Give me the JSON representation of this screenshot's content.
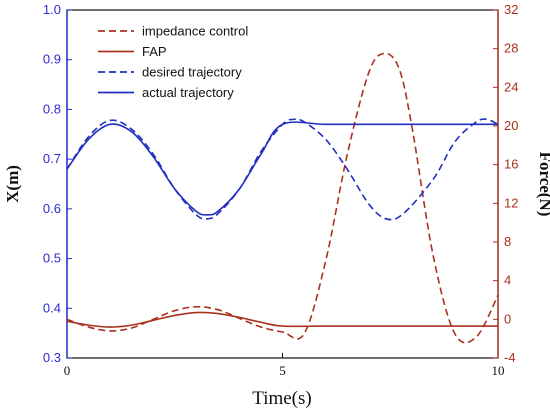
{
  "chart_data": {
    "type": "line",
    "xlabel": "Time(s)",
    "ylabel_left": "X(m)",
    "ylabel_right": "Force(N)",
    "xlim": [
      0,
      10
    ],
    "ylim_left": [
      0.3,
      1.0
    ],
    "ylim_right": [
      -4,
      32
    ],
    "x_ticks": [
      0,
      5,
      10
    ],
    "y_left_ticks": [
      0.3,
      0.4,
      0.5,
      0.6,
      0.7,
      0.8,
      0.9,
      1.0
    ],
    "y_right_ticks": [
      -4,
      0,
      4,
      8,
      12,
      16,
      20,
      24,
      28,
      32
    ],
    "legend_position": "top-left",
    "colors": {
      "left_axis": "#2b2bd6",
      "right_axis": "#a8321e",
      "force": "#a8321e",
      "position": "#1f2fc0"
    },
    "series": [
      {
        "name": "impedance control",
        "axis": "right",
        "style": "dashed",
        "x": [
          0,
          0.5,
          1.0,
          1.5,
          2.0,
          2.5,
          3.0,
          3.5,
          4.0,
          4.5,
          5.0,
          5.5,
          6.0,
          6.5,
          7.0,
          7.35,
          7.7,
          8.0,
          8.5,
          9.0,
          9.5,
          10.0
        ],
        "y": [
          0.0,
          -0.8,
          -1.2,
          -0.9,
          0.0,
          0.9,
          1.3,
          1.0,
          0.1,
          -0.8,
          -1.3,
          -1.5,
          6.0,
          17.0,
          25.5,
          27.5,
          26.0,
          20.0,
          6.5,
          -1.5,
          -1.8,
          2.5
        ]
      },
      {
        "name": "FAP",
        "axis": "right",
        "style": "solid",
        "x": [
          0,
          0.5,
          1.0,
          1.5,
          2.0,
          2.5,
          3.0,
          3.5,
          4.0,
          4.5,
          5.0,
          6.0,
          7.0,
          8.0,
          9.0,
          10.0
        ],
        "y": [
          -0.2,
          -0.6,
          -0.8,
          -0.6,
          -0.1,
          0.4,
          0.7,
          0.6,
          0.2,
          -0.3,
          -0.7,
          -0.7,
          -0.7,
          -0.7,
          -0.7,
          -0.7
        ]
      },
      {
        "name": "desired trajectory",
        "axis": "left",
        "style": "dashed",
        "x": [
          0,
          0.5,
          1.0,
          1.5,
          2.0,
          2.5,
          3.0,
          3.25,
          3.5,
          4.0,
          4.5,
          5.0,
          5.25,
          5.5,
          6.0,
          6.5,
          7.0,
          7.4,
          7.8,
          8.5,
          9.0,
          9.5,
          9.75,
          10.0
        ],
        "y": [
          0.68,
          0.745,
          0.778,
          0.76,
          0.71,
          0.64,
          0.588,
          0.58,
          0.59,
          0.64,
          0.715,
          0.77,
          0.78,
          0.775,
          0.74,
          0.68,
          0.61,
          0.58,
          0.59,
          0.66,
          0.735,
          0.775,
          0.78,
          0.77
        ]
      },
      {
        "name": "actual trajectory",
        "axis": "left",
        "style": "solid",
        "x": [
          0,
          0.5,
          1.0,
          1.5,
          2.0,
          2.5,
          3.0,
          3.25,
          3.5,
          4.0,
          4.5,
          5.0,
          6.0,
          7.0,
          8.0,
          9.0,
          10.0
        ],
        "y": [
          0.68,
          0.74,
          0.77,
          0.755,
          0.705,
          0.64,
          0.595,
          0.588,
          0.595,
          0.64,
          0.71,
          0.77,
          0.77,
          0.77,
          0.77,
          0.77,
          0.77
        ]
      }
    ]
  }
}
